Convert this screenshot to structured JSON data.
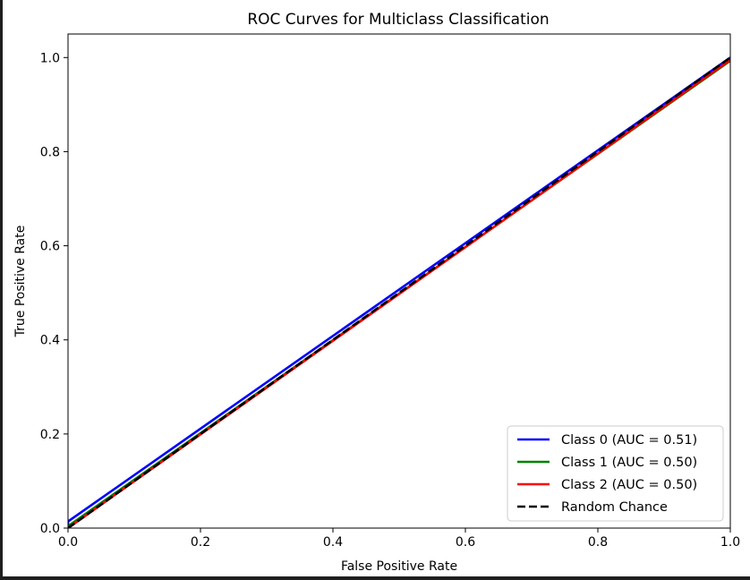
{
  "chart_data": {
    "type": "line",
    "title": "ROC Curves for Multiclass Classification",
    "xlabel": "False Positive Rate",
    "ylabel": "True Positive Rate",
    "xlim": [
      0.0,
      1.0
    ],
    "ylim": [
      0.0,
      1.05
    ],
    "xticks": [
      0.0,
      0.2,
      0.4,
      0.6,
      0.8,
      1.0
    ],
    "yticks": [
      0.0,
      0.2,
      0.4,
      0.6,
      0.8,
      1.0
    ],
    "xtick_labels": [
      "0.0",
      "0.2",
      "0.4",
      "0.6",
      "0.8",
      "1.0"
    ],
    "ytick_labels": [
      "0.0",
      "0.2",
      "0.4",
      "0.6",
      "0.8",
      "1.0"
    ],
    "grid": false,
    "legend_position": "lower-right",
    "series": [
      {
        "name": "Class 0 (AUC = 0.51)",
        "color": "#0000ff",
        "style": "solid",
        "x": [
          0.0,
          0.0,
          1.0
        ],
        "y": [
          0.0,
          0.014,
          1.0
        ]
      },
      {
        "name": "Class 1 (AUC = 0.50)",
        "color": "#008000",
        "style": "solid",
        "x": [
          0.0,
          0.0,
          1.0
        ],
        "y": [
          0.0,
          0.004,
          0.993
        ]
      },
      {
        "name": "Class 2 (AUC = 0.50)",
        "color": "#ff0000",
        "style": "solid",
        "x": [
          0.0,
          1.0
        ],
        "y": [
          0.0,
          0.995
        ]
      },
      {
        "name": "Random Chance",
        "color": "#000000",
        "style": "dashed",
        "x": [
          0.0,
          1.0
        ],
        "y": [
          0.0,
          1.0
        ]
      }
    ]
  }
}
